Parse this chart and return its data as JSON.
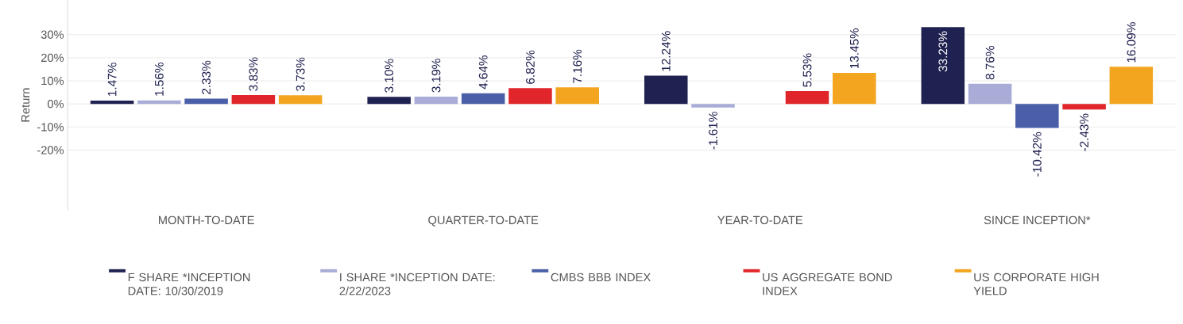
{
  "chart_data": {
    "type": "bar",
    "ylabel": "Return",
    "categories": [
      "MONTH-TO-DATE",
      "QUARTER-TO-DATE",
      "YEAR-TO-DATE",
      "SINCE INCEPTION*"
    ],
    "series": [
      {
        "name": "F SHARE *INCEPTION DATE: 10/30/2019",
        "color": "#1f2150",
        "values": [
          1.47,
          3.1,
          12.24,
          33.23
        ],
        "value_labels": [
          "1.47%",
          "3.10%",
          "12.24%",
          "33.23%"
        ]
      },
      {
        "name": "I SHARE *INCEPTION DATE: 2/22/2023",
        "color": "#a9acd6",
        "values": [
          1.56,
          3.19,
          -1.61,
          8.76
        ],
        "value_labels": [
          "1.56%",
          "3.19%",
          "-1.61%",
          "8.76%"
        ]
      },
      {
        "name": "CMBS BBB INDEX",
        "color": "#4a5fa8",
        "values": [
          2.33,
          4.64,
          null,
          -10.42
        ],
        "value_labels": [
          "2.33%",
          "4.64%",
          null,
          "-10.42%"
        ]
      },
      {
        "name": "US AGGREGATE BOND INDEX",
        "color": "#e0262b",
        "values": [
          3.83,
          6.82,
          5.53,
          -2.43
        ],
        "value_labels": [
          "3.83%",
          "6.82%",
          "5.53%",
          "-2.43%"
        ]
      },
      {
        "name": "US CORPORATE HIGH YIELD",
        "color": "#f3a51f",
        "values": [
          3.73,
          7.16,
          13.45,
          16.09
        ],
        "value_labels": [
          "3.73%",
          "7.16%",
          "13.45%",
          "16.09%"
        ]
      }
    ],
    "ylim": [
      -46,
      45
    ],
    "yticks": [
      {
        "value": -20,
        "label": "-20%"
      },
      {
        "value": -10,
        "label": "-10%"
      },
      {
        "value": 0,
        "label": "0%"
      },
      {
        "value": 10,
        "label": "10%"
      },
      {
        "value": 20,
        "label": "20%"
      },
      {
        "value": 30,
        "label": "30%"
      }
    ],
    "grid": "y",
    "legend": "bottom"
  }
}
